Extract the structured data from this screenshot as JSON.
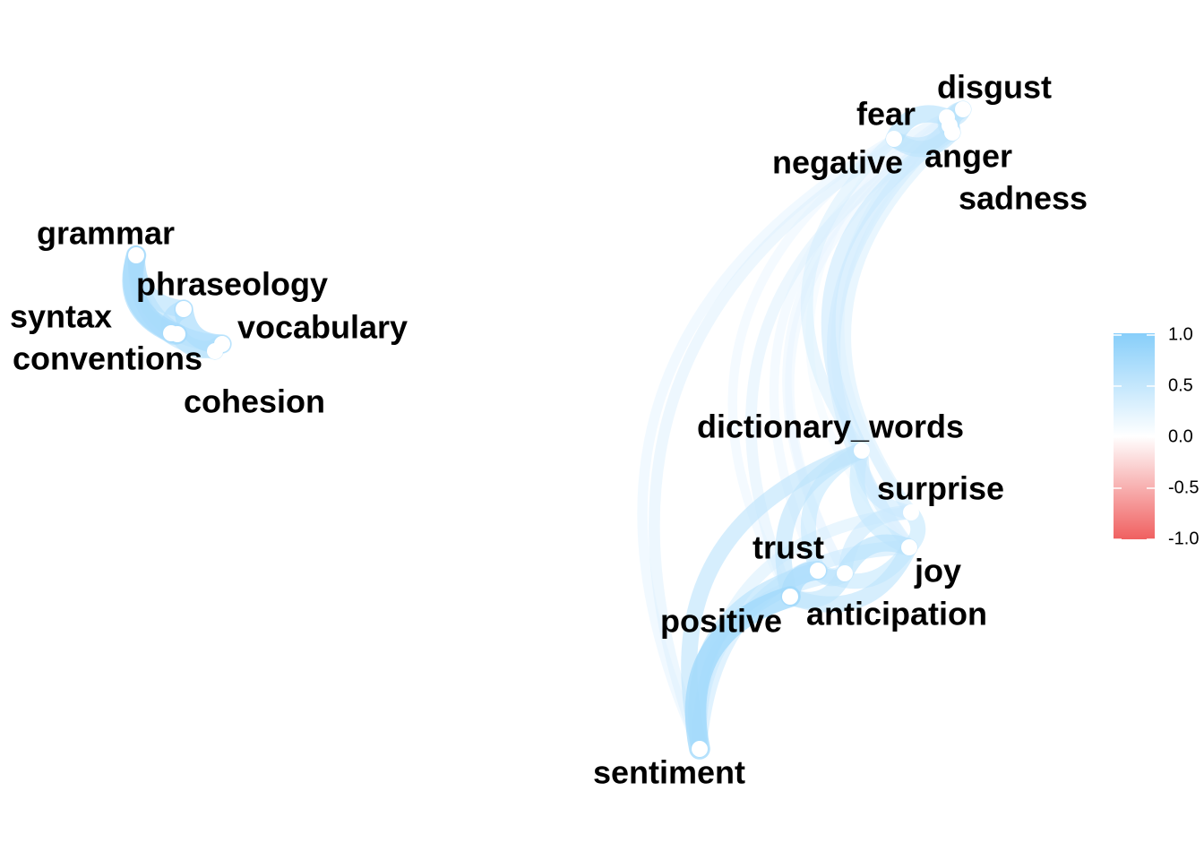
{
  "chart_data": {
    "type": "network",
    "nodes": [
      {
        "name": "grammar"
      },
      {
        "name": "phraseology"
      },
      {
        "name": "syntax"
      },
      {
        "name": "conventions"
      },
      {
        "name": "vocabulary"
      },
      {
        "name": "cohesion"
      },
      {
        "name": "disgust"
      },
      {
        "name": "fear"
      },
      {
        "name": "negative"
      },
      {
        "name": "anger"
      },
      {
        "name": "sadness"
      },
      {
        "name": "dictionary_words"
      },
      {
        "name": "surprise"
      },
      {
        "name": "trust"
      },
      {
        "name": "joy"
      },
      {
        "name": "positive"
      },
      {
        "name": "anticipation"
      },
      {
        "name": "sentiment"
      }
    ],
    "edges": [
      {
        "from": "grammar",
        "to": "phraseology",
        "r": 0.6
      },
      {
        "from": "grammar",
        "to": "syntax",
        "r": 0.7
      },
      {
        "from": "grammar",
        "to": "conventions",
        "r": 0.75
      },
      {
        "from": "grammar",
        "to": "vocabulary",
        "r": 0.6
      },
      {
        "from": "grammar",
        "to": "cohesion",
        "r": 0.55
      },
      {
        "from": "phraseology",
        "to": "syntax",
        "r": 0.65
      },
      {
        "from": "phraseology",
        "to": "vocabulary",
        "r": 0.7
      },
      {
        "from": "syntax",
        "to": "conventions",
        "r": 0.7
      },
      {
        "from": "conventions",
        "to": "vocabulary",
        "r": 0.6
      },
      {
        "from": "vocabulary",
        "to": "cohesion",
        "r": 0.6
      },
      {
        "from": "fear",
        "to": "disgust",
        "r": 0.55
      },
      {
        "from": "fear",
        "to": "negative",
        "r": 0.6
      },
      {
        "from": "fear",
        "to": "anger",
        "r": 0.55
      },
      {
        "from": "fear",
        "to": "sadness",
        "r": 0.55
      },
      {
        "from": "disgust",
        "to": "anger",
        "r": 0.6
      },
      {
        "from": "disgust",
        "to": "sadness",
        "r": 0.55
      },
      {
        "from": "negative",
        "to": "anger",
        "r": 0.55
      },
      {
        "from": "negative",
        "to": "sadness",
        "r": 0.55
      },
      {
        "from": "anger",
        "to": "sadness",
        "r": 0.5
      },
      {
        "from": "negative",
        "to": "dictionary_words",
        "r": 0.35
      },
      {
        "from": "negative",
        "to": "sentiment",
        "r": 0.25
      },
      {
        "from": "negative",
        "to": "positive",
        "r": 0.2
      },
      {
        "from": "negative",
        "to": "joy",
        "r": 0.15
      },
      {
        "from": "fear",
        "to": "sentiment",
        "r": 0.3
      },
      {
        "from": "fear",
        "to": "surprise",
        "r": 0.25
      },
      {
        "from": "fear",
        "to": "anticipation",
        "r": 0.2
      },
      {
        "from": "disgust",
        "to": "trust",
        "r": 0.2
      },
      {
        "from": "disgust",
        "to": "joy",
        "r": 0.25
      },
      {
        "from": "anger",
        "to": "positive",
        "r": 0.3
      },
      {
        "from": "anger",
        "to": "surprise",
        "r": 0.35
      },
      {
        "from": "sadness",
        "to": "joy",
        "r": 0.4
      },
      {
        "from": "sadness",
        "to": "anticipation",
        "r": 0.2
      },
      {
        "from": "anger",
        "to": "dictionary_words",
        "r": 0.45
      },
      {
        "from": "dictionary_words",
        "to": "trust",
        "r": 0.5
      },
      {
        "from": "dictionary_words",
        "to": "positive",
        "r": 0.55
      },
      {
        "from": "dictionary_words",
        "to": "surprise",
        "r": 0.45
      },
      {
        "from": "dictionary_words",
        "to": "joy",
        "r": 0.5
      },
      {
        "from": "dictionary_words",
        "to": "sentiment",
        "r": 0.55
      },
      {
        "from": "trust",
        "to": "positive",
        "r": 0.7
      },
      {
        "from": "trust",
        "to": "joy",
        "r": 0.5
      },
      {
        "from": "trust",
        "to": "anticipation",
        "r": 0.55
      },
      {
        "from": "trust",
        "to": "sentiment",
        "r": 0.6
      },
      {
        "from": "positive",
        "to": "sentiment",
        "r": 0.8
      },
      {
        "from": "positive",
        "to": "joy",
        "r": 0.55
      },
      {
        "from": "positive",
        "to": "anticipation",
        "r": 0.55
      },
      {
        "from": "joy",
        "to": "anticipation",
        "r": 0.6
      },
      {
        "from": "joy",
        "to": "surprise",
        "r": 0.5
      },
      {
        "from": "joy",
        "to": "sentiment",
        "r": 0.45
      },
      {
        "from": "anticipation",
        "to": "sentiment",
        "r": 0.45
      },
      {
        "from": "surprise",
        "to": "sentiment",
        "r": 0.35
      },
      {
        "from": "surprise",
        "to": "anticipation",
        "r": 0.45
      }
    ],
    "legend": {
      "ticks": [
        "1.0",
        "0.5",
        "0.0",
        "-0.5",
        "-1.0"
      ],
      "tick_values": [
        1.0,
        0.5,
        0.0,
        -0.5,
        -1.0
      ],
      "range": [
        -1.0,
        1.0
      ],
      "colors": {
        "high": "#87cefa",
        "mid": "#ffffff",
        "low": "#f06060"
      }
    }
  }
}
